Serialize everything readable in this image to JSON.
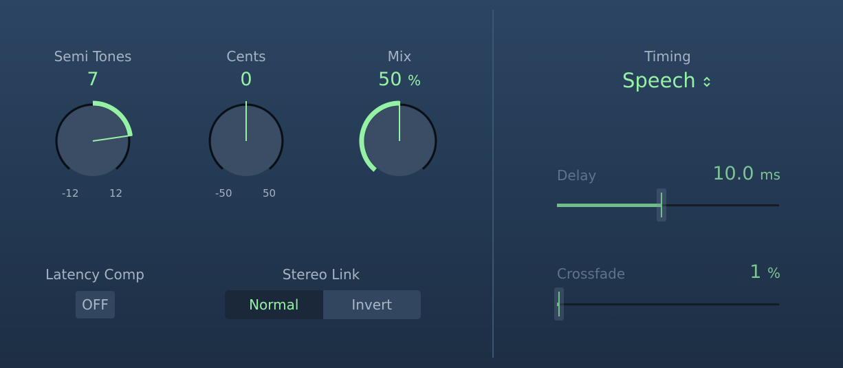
{
  "colors": {
    "accent": "#95f2a4",
    "slider_accent": "#6fbf88"
  },
  "knobs": [
    {
      "label": "Semi Tones",
      "value": "7",
      "unit": "",
      "min_label": "-12",
      "max_label": "12",
      "min": -12,
      "max": 12,
      "current": 7,
      "bipolar": true
    },
    {
      "label": "Cents",
      "value": "0",
      "unit": "",
      "min_label": "-50",
      "max_label": "50",
      "min": -50,
      "max": 50,
      "current": 0,
      "bipolar": true
    },
    {
      "label": "Mix",
      "value": "50",
      "unit": "%",
      "min": 0,
      "max": 100,
      "current": 50,
      "bipolar": false
    }
  ],
  "latency": {
    "label": "Latency Comp",
    "button": "OFF"
  },
  "stereo_link": {
    "label": "Stereo Link",
    "options": [
      "Normal",
      "Invert"
    ],
    "selected": "Normal"
  },
  "timing": {
    "label": "Timing",
    "value": "Speech",
    "icon": "up-down-chevron-icon"
  },
  "delay": {
    "label": "Delay",
    "value": "10.0",
    "unit": "ms",
    "fraction": 0.47
  },
  "crossfade": {
    "label": "Crossfade",
    "value": "1",
    "unit": "%",
    "fraction": 0.01
  }
}
